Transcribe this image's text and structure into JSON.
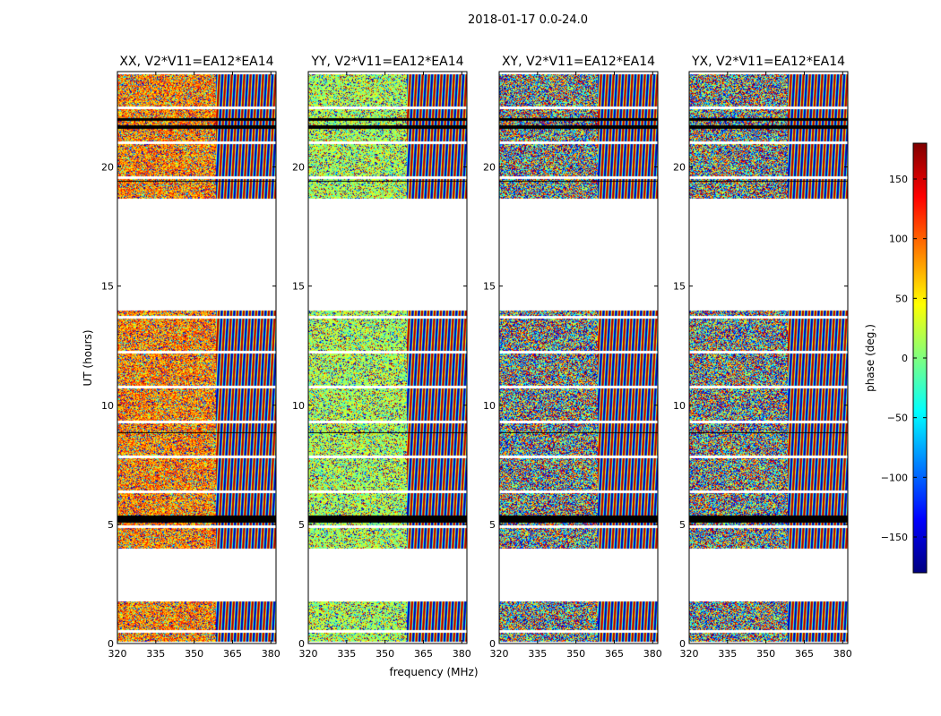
{
  "chart_data": {
    "type": "heatmap",
    "title": "2018-01-17 0.0-24.0",
    "xlabel": "frequency (MHz)",
    "ylabel": "UT (hours)",
    "xlim": [
      320,
      382
    ],
    "ylim": [
      0,
      24
    ],
    "x_ticks": [
      "320",
      "335",
      "350",
      "365",
      "380"
    ],
    "y_ticks": [
      "0",
      "5",
      "10",
      "15",
      "20"
    ],
    "panels": [
      {
        "title": "XX, V2*V11=EA12*EA14",
        "bias": "warm"
      },
      {
        "title": "YY, V2*V11=EA12*EA14",
        "bias": "green"
      },
      {
        "title": "XY, V2*V11=EA12*EA14",
        "bias": "noise"
      },
      {
        "title": "YX, V2*V11=EA12*EA14",
        "bias": "noise"
      }
    ],
    "data_ut_ranges": [
      [
        0.1,
        1.8
      ],
      [
        4.0,
        14.0
      ],
      [
        18.7,
        24.0
      ]
    ],
    "flagged_ut_ranges": [
      [
        5.1,
        5.4
      ],
      [
        21.6,
        21.75
      ],
      [
        21.95,
        22.05
      ],
      [
        19.4,
        19.45
      ],
      [
        8.85,
        8.9
      ]
    ],
    "colorbar": {
      "label": "phase (deg.)",
      "range": [
        -180,
        180
      ],
      "ticks": [
        "150",
        "100",
        "50",
        "0",
        "−50",
        "−100",
        "−150"
      ],
      "colormap": "jet",
      "colors": [
        "#00007f",
        "#0000ff",
        "#007fff",
        "#00ffff",
        "#7fff7f",
        "#ffff00",
        "#ff7f00",
        "#ff0000",
        "#7f0000"
      ]
    }
  }
}
